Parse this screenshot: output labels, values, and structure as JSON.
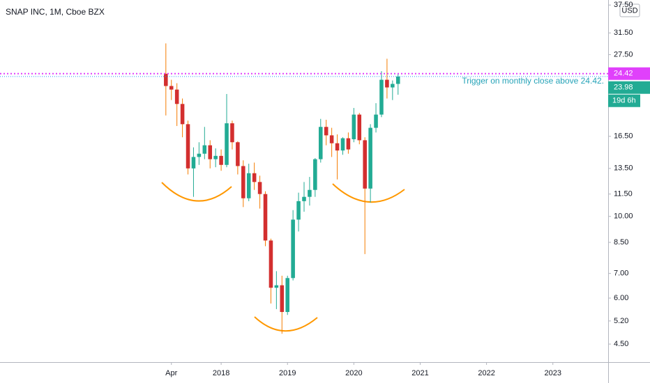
{
  "chart_data": {
    "type": "candlestick",
    "title": "SNAP INC, 1M, Cboe BZX",
    "currency": "USD",
    "log_scale": true,
    "grid": false,
    "up_color": "#22ab94",
    "down_color": "#d32f2f",
    "wick_up_color": "#22ab94",
    "wick_down_color": "#f57c00",
    "x": [
      "2017-03",
      "2017-04",
      "2017-05",
      "2017-06",
      "2017-07",
      "2017-08",
      "2017-09",
      "2017-10",
      "2017-11",
      "2017-12",
      "2018-01",
      "2018-02",
      "2018-03",
      "2018-04",
      "2018-05",
      "2018-06",
      "2018-07",
      "2018-08",
      "2018-09",
      "2018-10",
      "2018-11",
      "2018-12",
      "2019-01",
      "2019-02",
      "2019-03",
      "2019-04",
      "2019-05",
      "2019-06",
      "2019-07",
      "2019-08",
      "2019-09",
      "2019-10",
      "2019-11",
      "2019-12",
      "2020-01",
      "2020-02",
      "2020-03",
      "2020-04",
      "2020-05",
      "2020-06",
      "2020-07",
      "2020-08",
      "2020-09"
    ],
    "open": [
      24.4,
      22.6,
      22.1,
      20.2,
      17.8,
      13.5,
      14.5,
      14.8,
      15.6,
      14.3,
      14.6,
      13.8,
      17.9,
      15.9,
      13.7,
      11.2,
      13.1,
      12.4,
      11.5,
      8.6,
      6.4,
      6.5,
      5.5,
      6.8,
      9.8,
      11.0,
      11.3,
      11.8,
      14.3,
      17.5,
      16.6,
      15.8,
      15.1,
      16.3,
      16.2,
      18.9,
      16.1,
      11.9,
      17.4,
      18.9,
      23.5,
      22.4,
      22.9
    ],
    "high": [
      29.5,
      23.5,
      23.0,
      20.9,
      18.2,
      15.4,
      15.9,
      17.5,
      16.1,
      15.3,
      15.2,
      21.5,
      18.2,
      16.0,
      14.2,
      13.9,
      14.0,
      12.9,
      11.7,
      8.7,
      7.1,
      6.9,
      6.9,
      10.4,
      11.6,
      12.4,
      12.8,
      14.4,
      18.4,
      18.3,
      17.4,
      16.7,
      16.4,
      16.9,
      19.7,
      19.1,
      16.4,
      17.8,
      20.3,
      24.8,
      26.8,
      23.4,
      24.4
    ],
    "low": [
      18.8,
      20.7,
      17.6,
      16.4,
      13.0,
      11.3,
      13.8,
      14.3,
      13.5,
      13.6,
      13.3,
      13.6,
      15.2,
      13.0,
      10.6,
      11.0,
      11.8,
      10.5,
      8.3,
      5.8,
      5.6,
      4.8,
      5.4,
      6.7,
      9.1,
      10.3,
      10.7,
      11.3,
      14.0,
      15.6,
      14.5,
      12.6,
      14.7,
      14.8,
      15.9,
      15.7,
      7.9,
      10.9,
      16.9,
      18.6,
      20.9,
      20.7,
      21.4
    ],
    "close": [
      22.6,
      22.1,
      20.2,
      17.8,
      13.5,
      14.5,
      14.8,
      15.6,
      14.3,
      14.6,
      13.8,
      17.9,
      15.9,
      13.7,
      11.2,
      13.1,
      12.4,
      11.5,
      8.6,
      6.4,
      6.5,
      5.5,
      6.8,
      9.8,
      11.0,
      11.3,
      11.8,
      14.3,
      17.5,
      16.6,
      15.8,
      15.1,
      16.3,
      15.2,
      18.9,
      16.1,
      11.9,
      17.4,
      18.9,
      23.5,
      22.4,
      22.9,
      23.98
    ],
    "xlim": [
      "2014-09",
      "2023-11"
    ],
    "xticks": [
      {
        "value": "2017-04",
        "label": "Apr"
      },
      {
        "value": "2018-01",
        "label": "2018"
      },
      {
        "value": "2019-01",
        "label": "2019"
      },
      {
        "value": "2020-01",
        "label": "2020"
      },
      {
        "value": "2021-01",
        "label": "2021"
      },
      {
        "value": "2022-01",
        "label": "2022"
      },
      {
        "value": "2023-01",
        "label": "2023"
      }
    ],
    "ylim": [
      4.02,
      38.7
    ],
    "yticks": [
      {
        "value": 37.5,
        "label": "37.50"
      },
      {
        "value": 31.5,
        "label": "31.50"
      },
      {
        "value": 27.5,
        "label": "27.50"
      },
      {
        "value": 16.5,
        "label": "16.50"
      },
      {
        "value": 13.5,
        "label": "13.50"
      },
      {
        "value": 11.5,
        "label": "11.50"
      },
      {
        "value": 10,
        "label": "10.00"
      },
      {
        "value": 8.5,
        "label": "8.50"
      },
      {
        "value": 7,
        "label": "7.00"
      },
      {
        "value": 6,
        "label": "6.00"
      },
      {
        "value": 5.2,
        "label": "5.20"
      },
      {
        "value": 4.5,
        "label": "4.50"
      }
    ],
    "trigger_line": {
      "value": 24.42,
      "color": "#e040fb"
    },
    "last_price_color": "#22ab94",
    "countdown": "19d 6h",
    "annotation": "Trigger on monthly close above 24.42."
  }
}
